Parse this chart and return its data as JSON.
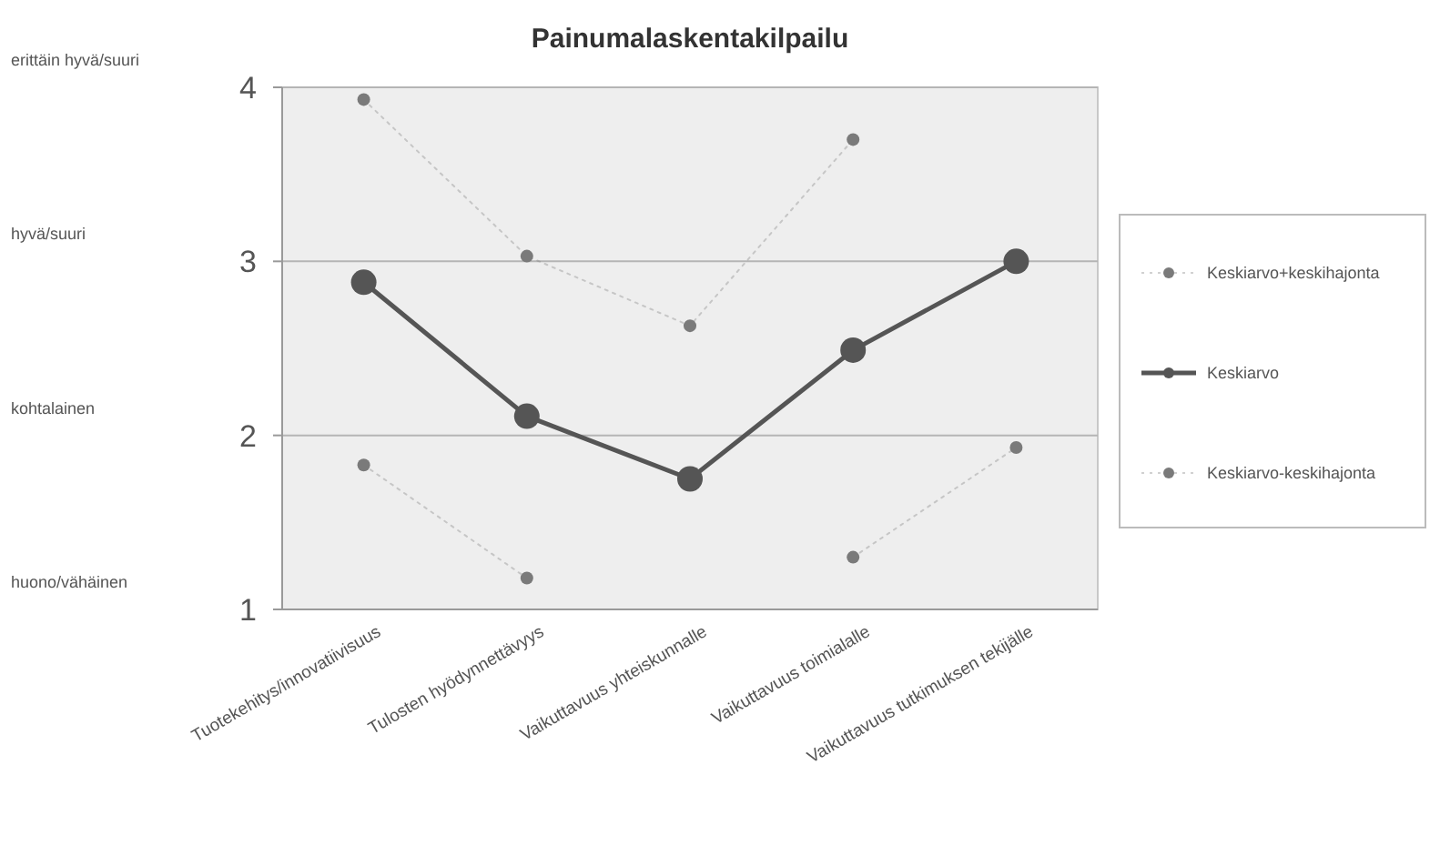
{
  "chart_data": {
    "type": "line",
    "title": "Painumalaskentakilpailu",
    "categories": [
      "Tuotekehitys/innovatiivisuus",
      "Tulosten hyödynnettävyys",
      "Vaikuttavuus yhteiskunnalle",
      "Vaikuttavuus toimialalle",
      "Vaikuttavuus tutkimuksen tekijälle"
    ],
    "series": [
      {
        "name": "Keskiarvo+keskihajonta",
        "color": "#7a7a7a",
        "values": [
          3.93,
          3.03,
          2.63,
          3.7,
          null
        ],
        "marker": "circle",
        "line_style": "dotted"
      },
      {
        "name": "Keskiarvo",
        "color": "#555555",
        "values": [
          2.88,
          2.11,
          1.75,
          2.49,
          3.0
        ],
        "marker": "circle",
        "line_style": "solid"
      },
      {
        "name": "Keskiarvo-keskihajonta",
        "color": "#7a7a7a",
        "values": [
          1.83,
          1.18,
          null,
          1.3,
          1.93
        ],
        "marker": "circle",
        "line_style": "dotted"
      }
    ],
    "ylim": [
      1,
      4
    ],
    "yticks": [
      1,
      2,
      3,
      4
    ],
    "grid": "y",
    "legend": "right",
    "annotations": [
      "erittäin hyvä/suuri",
      "hyvä/suuri",
      "kohtalainen",
      "huono/vähäinen"
    ]
  }
}
